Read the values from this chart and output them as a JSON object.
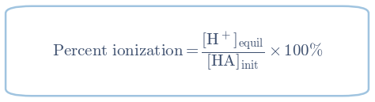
{
  "background_color": "#ffffff",
  "border_color": "#a0c4e0",
  "text_color": "#3d4f6e",
  "fontsize": 15,
  "fig_width": 4.74,
  "fig_height": 1.29,
  "dpi": 100
}
